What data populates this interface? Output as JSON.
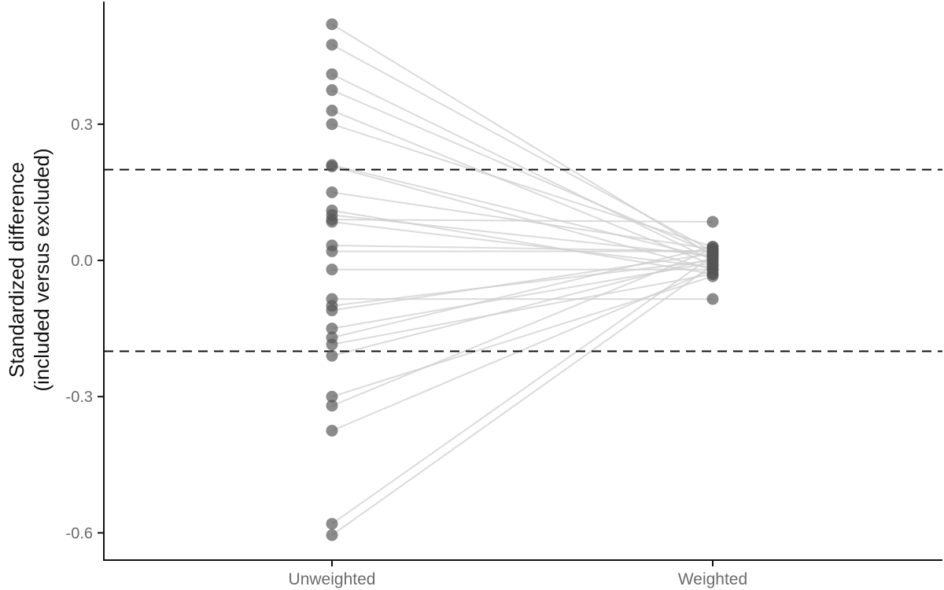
{
  "chart_data": {
    "type": "scatter",
    "title": "",
    "ylabel_lines": [
      "Standardized difference",
      "(included versus excluded)"
    ],
    "xlabel": "",
    "categories": [
      "Unweighted",
      "Weighted"
    ],
    "y_ticks": [
      0.3,
      0.0,
      -0.3,
      -0.6
    ],
    "y_tick_labels": [
      "0.3",
      "0.0",
      "-0.3",
      "-0.6"
    ],
    "ylim": [
      -0.66,
      0.57
    ],
    "reference_lines": [
      0.2,
      -0.2
    ],
    "grid": false,
    "legend": "none",
    "colors": {
      "point": "#555555",
      "line": "#cfcfcf",
      "reference": "#111111",
      "axis": "#111111"
    },
    "pairs": [
      {
        "unweighted": 0.52,
        "weighted": 0.01
      },
      {
        "unweighted": 0.475,
        "weighted": 0.02
      },
      {
        "unweighted": 0.41,
        "weighted": 0.0
      },
      {
        "unweighted": 0.375,
        "weighted": 0.015
      },
      {
        "unweighted": 0.33,
        "weighted": -0.01
      },
      {
        "unweighted": 0.3,
        "weighted": 0.03
      },
      {
        "unweighted": 0.21,
        "weighted": 0.005
      },
      {
        "unweighted": 0.207,
        "weighted": -0.02
      },
      {
        "unweighted": 0.15,
        "weighted": 0.025
      },
      {
        "unweighted": 0.11,
        "weighted": -0.03
      },
      {
        "unweighted": 0.1,
        "weighted": 0.01
      },
      {
        "unweighted": 0.09,
        "weighted": 0.085
      },
      {
        "unweighted": 0.085,
        "weighted": -0.015
      },
      {
        "unweighted": 0.033,
        "weighted": 0.02
      },
      {
        "unweighted": 0.02,
        "weighted": 0.02
      },
      {
        "unweighted": -0.02,
        "weighted": -0.02
      },
      {
        "unweighted": -0.085,
        "weighted": -0.085
      },
      {
        "unweighted": -0.1,
        "weighted": 0.0
      },
      {
        "unweighted": -0.11,
        "weighted": 0.015
      },
      {
        "unweighted": -0.15,
        "weighted": -0.005
      },
      {
        "unweighted": -0.17,
        "weighted": 0.03
      },
      {
        "unweighted": -0.185,
        "weighted": -0.03
      },
      {
        "unweighted": -0.21,
        "weighted": 0.005
      },
      {
        "unweighted": -0.3,
        "weighted": -0.035
      },
      {
        "unweighted": -0.32,
        "weighted": 0.025
      },
      {
        "unweighted": -0.375,
        "weighted": -0.02
      },
      {
        "unweighted": -0.58,
        "weighted": 0.01
      },
      {
        "unweighted": -0.605,
        "weighted": -0.01
      }
    ]
  }
}
